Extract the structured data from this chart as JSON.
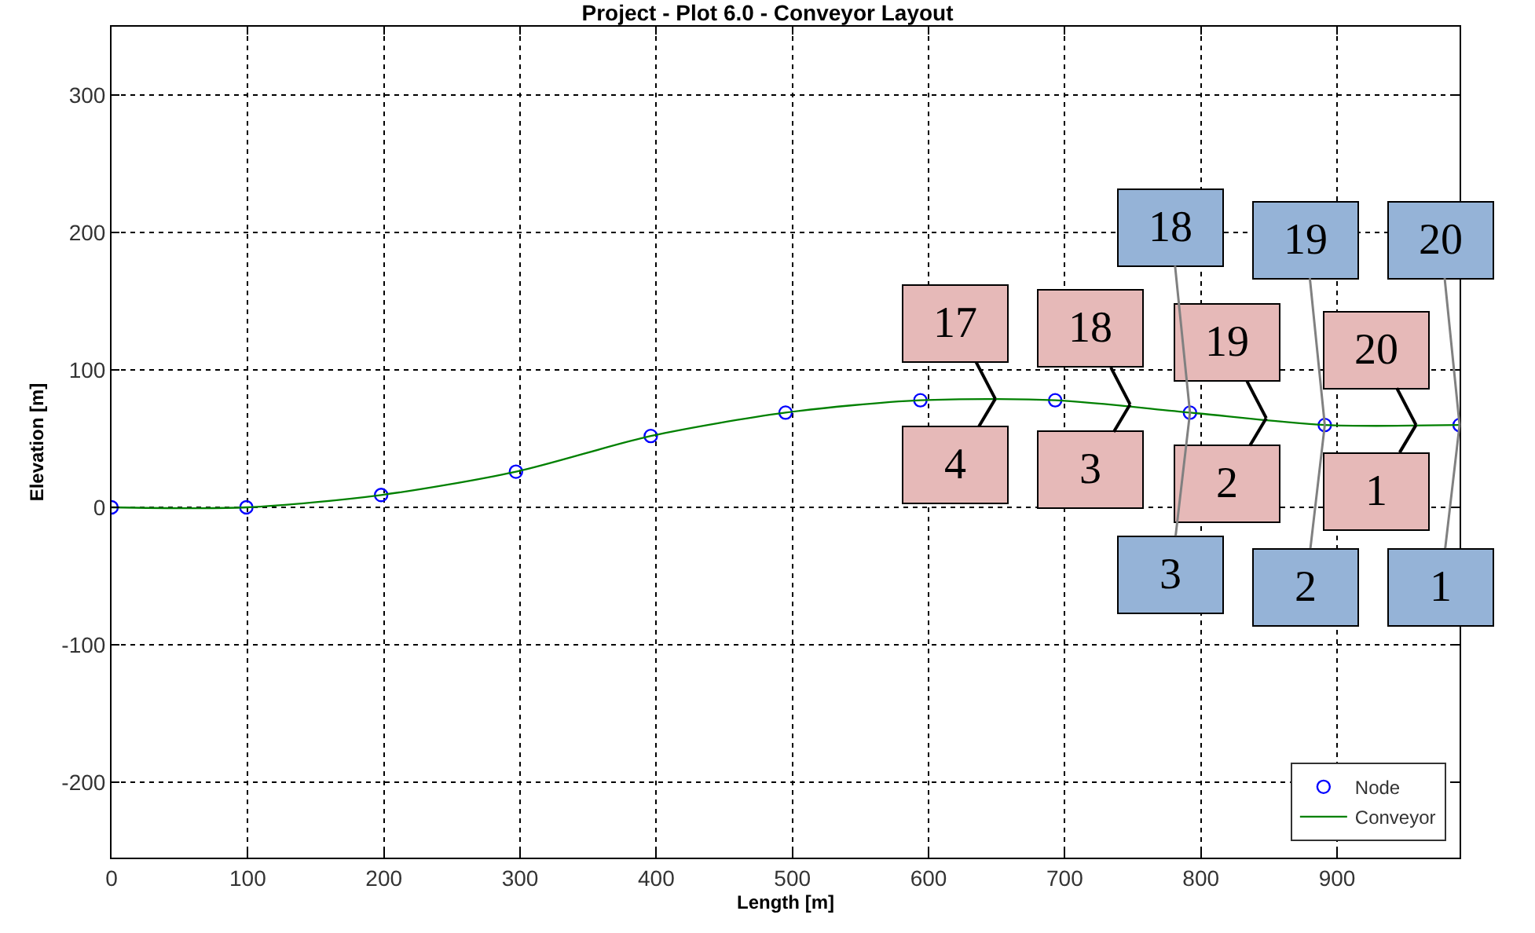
{
  "chart_data": {
    "type": "line",
    "title": "Project - Plot 6.0 - Conveyor Layout",
    "xlabel": "Length [m]",
    "ylabel": "Elevation [m]",
    "x": [
      0,
      99,
      198,
      297,
      396,
      495,
      594,
      693,
      792,
      891,
      990
    ],
    "series": [
      {
        "name": "Node",
        "type": "scatter",
        "marker": "circle",
        "color": "#0000ff",
        "values": [
          0,
          0,
          9,
          26,
          52,
          69,
          78,
          78,
          69,
          60,
          60
        ]
      },
      {
        "name": "Conveyor",
        "line_style": "solid",
        "color": "#008000",
        "values": [
          0,
          0,
          9,
          26,
          52,
          69,
          78,
          78,
          69,
          60,
          60
        ]
      }
    ],
    "xlim": [
      0,
      990
    ],
    "xticks": [
      0,
      100,
      200,
      300,
      400,
      500,
      600,
      700,
      800,
      900
    ],
    "ylim": [
      -255,
      350
    ],
    "yticks": [
      -200,
      -100,
      0,
      100,
      200,
      300
    ],
    "grid": true,
    "legend": "bottom right",
    "annotations": [
      {
        "text": "17",
        "x": 649,
        "y": 79
      },
      {
        "text": "4",
        "x": 649,
        "y": 79
      },
      {
        "text": "18",
        "x": 748,
        "y": 75
      },
      {
        "text": "3",
        "x": 748,
        "y": 75
      },
      {
        "text": "19",
        "x": 848,
        "y": 65
      },
      {
        "text": "2",
        "x": 848,
        "y": 65
      },
      {
        "text": "20",
        "x": 958,
        "y": 60
      },
      {
        "text": "1",
        "x": 958,
        "y": 60
      },
      {
        "text": "18",
        "x": 792,
        "y": 69
      },
      {
        "text": "3",
        "x": 792,
        "y": 69
      },
      {
        "text": "19",
        "x": 891,
        "y": 60
      },
      {
        "text": "2",
        "x": 891,
        "y": 60
      },
      {
        "text": "20",
        "x": 990,
        "y": 60
      },
      {
        "text": "1",
        "x": 990,
        "y": 60
      }
    ]
  }
}
